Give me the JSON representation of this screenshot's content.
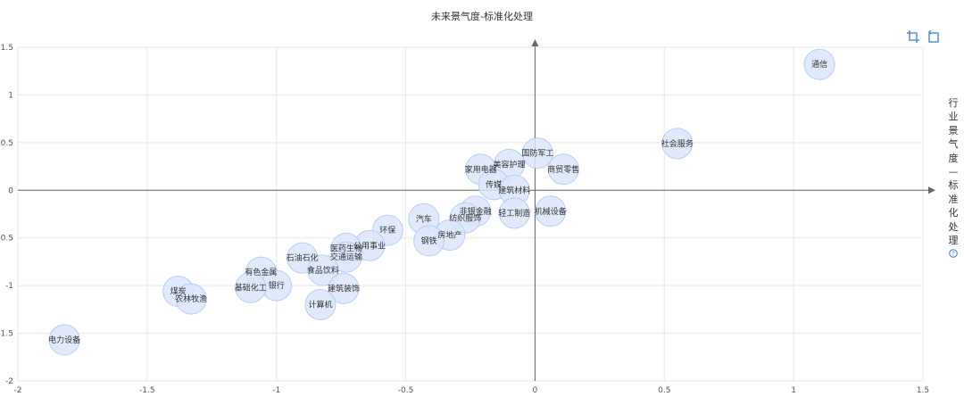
{
  "title": "未来景气度-标准化处理",
  "icons": {
    "zoom": "crop-icon",
    "restore": "restore-icon",
    "help": "question-circle-icon"
  },
  "colors": {
    "bubble_fill": "#dbe6fb",
    "bubble_stroke": "#b9ccf4",
    "axis": "#666666",
    "grid": "#e8e8e8",
    "icon": "#3a7bd5"
  },
  "chart_data": {
    "type": "scatter",
    "title": "未来景气度-标准化处理",
    "xlabel": "",
    "ylabel": "行业景气度—标准化处理",
    "xlim": [
      -2,
      1.5
    ],
    "ylim": [
      -2,
      1.5
    ],
    "xticks": [
      "-2",
      "-1.5",
      "-1",
      "-0.5",
      "0",
      "0.5",
      "1",
      "1.5"
    ],
    "yticks": [
      "-2",
      "-1.5",
      "-1",
      "-0.5",
      "0",
      "0.5",
      "1",
      "1.5"
    ],
    "grid": true,
    "points": [
      {
        "label": "通信",
        "x": 1.1,
        "y": 1.32
      },
      {
        "label": "社会服务",
        "x": 0.55,
        "y": 0.49
      },
      {
        "label": "国防军工",
        "x": 0.01,
        "y": 0.39
      },
      {
        "label": "商贸零售",
        "x": 0.11,
        "y": 0.22
      },
      {
        "label": "美容护理",
        "x": -0.1,
        "y": 0.27
      },
      {
        "label": "家用电器",
        "x": -0.21,
        "y": 0.22
      },
      {
        "label": "传媒",
        "x": -0.16,
        "y": 0.06
      },
      {
        "label": "建筑材料",
        "x": -0.08,
        "y": 0.0
      },
      {
        "label": "机械设备",
        "x": 0.06,
        "y": -0.22
      },
      {
        "label": "轻工制造",
        "x": -0.08,
        "y": -0.24
      },
      {
        "label": "非银金融",
        "x": -0.23,
        "y": -0.22
      },
      {
        "label": "纺织服饰",
        "x": -0.27,
        "y": -0.29
      },
      {
        "label": "汽车",
        "x": -0.43,
        "y": -0.3
      },
      {
        "label": "房地产",
        "x": -0.33,
        "y": -0.47
      },
      {
        "label": "钢铁",
        "x": -0.41,
        "y": -0.53
      },
      {
        "label": "环保",
        "x": -0.57,
        "y": -0.42
      },
      {
        "label": "公用事业",
        "x": -0.64,
        "y": -0.58
      },
      {
        "label": "医药生物",
        "x": -0.73,
        "y": -0.61
      },
      {
        "label": "交通运输",
        "x": -0.73,
        "y": -0.7
      },
      {
        "label": "石油石化",
        "x": -0.9,
        "y": -0.71
      },
      {
        "label": "食品饮料",
        "x": -0.82,
        "y": -0.84
      },
      {
        "label": "有色金属",
        "x": -1.06,
        "y": -0.86
      },
      {
        "label": "银行",
        "x": -1.0,
        "y": -1.0
      },
      {
        "label": "基础化工",
        "x": -1.1,
        "y": -1.02
      },
      {
        "label": "建筑装饰",
        "x": -0.74,
        "y": -1.03
      },
      {
        "label": "计算机",
        "x": -0.83,
        "y": -1.2
      },
      {
        "label": "煤炭",
        "x": -1.38,
        "y": -1.06
      },
      {
        "label": "农林牧渔",
        "x": -1.33,
        "y": -1.14
      },
      {
        "label": "电力设备",
        "x": -1.82,
        "y": -1.57
      }
    ]
  }
}
